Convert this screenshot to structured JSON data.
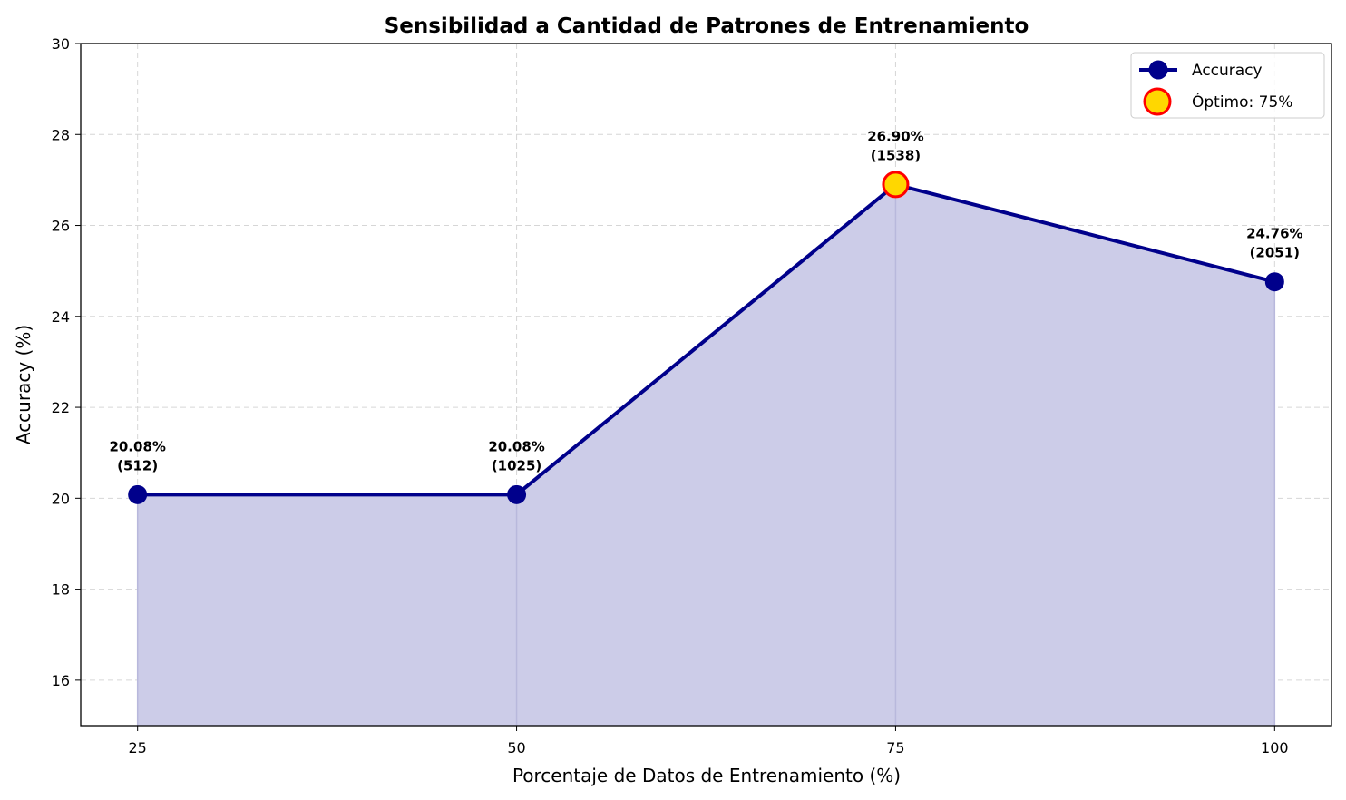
{
  "chart_data": {
    "type": "line",
    "title": "Sensibilidad a Cantidad de Patrones de Entrenamiento",
    "xlabel": "Porcentaje de Datos de Entrenamiento (%)",
    "ylabel": "Accuracy (%)",
    "x": [
      25,
      50,
      75,
      100
    ],
    "xlim": [
      21.25,
      103.75
    ],
    "ylim": [
      15,
      30
    ],
    "yticks": [
      16,
      18,
      20,
      22,
      24,
      26,
      28,
      30
    ],
    "grid": true,
    "fill_under": true,
    "series": [
      {
        "name": "Accuracy",
        "values": [
          20.08,
          20.08,
          26.9,
          24.76
        ],
        "labels": [
          "20.08%\n(512)",
          "20.08%\n(1025)",
          "26.90%\n(1538)",
          "24.76%\n(2051)"
        ],
        "color": "#00008b"
      }
    ],
    "highlight": {
      "name": "Óptimo: 75%",
      "x": 75,
      "y": 26.9,
      "fill": "#ffd700",
      "edge": "#ff0000"
    },
    "legend": {
      "position": "top-right"
    },
    "colors": {
      "line": "#00008b",
      "fill": "#cccce8"
    }
  }
}
